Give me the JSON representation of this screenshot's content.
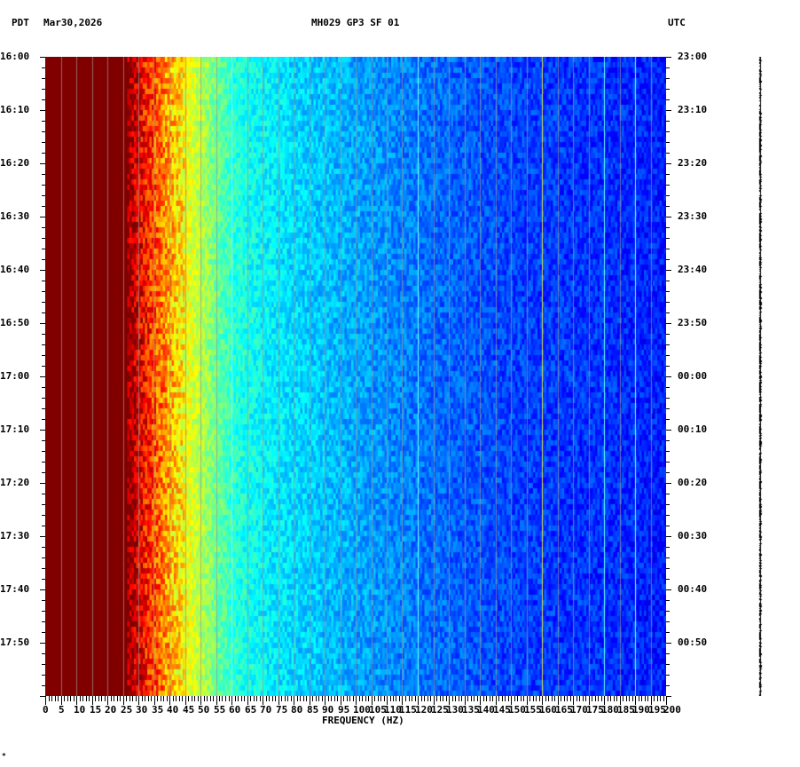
{
  "header": {
    "left_tz": "PDT",
    "date": "Mar30,2026",
    "station": "MH029 GP3 SF 01",
    "right_tz": "UTC"
  },
  "footer_mark": "*",
  "chart_data": {
    "type": "heatmap",
    "title": "MH029 GP3 SF 01",
    "xlabel": "FREQUENCY (HZ)",
    "xlim": [
      0,
      200
    ],
    "x_ticks": [
      0,
      5,
      10,
      15,
      20,
      25,
      30,
      35,
      40,
      45,
      50,
      55,
      60,
      65,
      70,
      75,
      80,
      85,
      90,
      95,
      100,
      105,
      110,
      115,
      120,
      125,
      130,
      135,
      140,
      145,
      150,
      155,
      160,
      165,
      170,
      175,
      180,
      185,
      190,
      195,
      200
    ],
    "y_left_label": "PDT",
    "y_right_label": "UTC",
    "y_left_ticks": [
      "16:00",
      "16:10",
      "16:20",
      "16:30",
      "16:40",
      "16:50",
      "17:00",
      "17:10",
      "17:20",
      "17:30",
      "17:40",
      "17:50"
    ],
    "y_right_ticks": [
      "23:00",
      "23:10",
      "23:20",
      "23:30",
      "23:40",
      "23:50",
      "00:00",
      "00:10",
      "00:20",
      "00:30",
      "00:40",
      "00:50"
    ],
    "time_span_minutes": 120,
    "colormap": "jet",
    "intensity_profile": {
      "freq_hz": [
        0,
        25,
        28,
        32,
        36,
        40,
        45,
        50,
        55,
        60,
        70,
        80,
        100,
        120,
        150,
        180,
        200
      ],
      "level": [
        1.0,
        1.0,
        0.95,
        0.86,
        0.78,
        0.7,
        0.62,
        0.55,
        0.48,
        0.42,
        0.37,
        0.34,
        0.29,
        0.24,
        0.19,
        0.17,
        0.15
      ]
    },
    "line_frequencies_hz": [
      60,
      120,
      160,
      180,
      190
    ]
  }
}
